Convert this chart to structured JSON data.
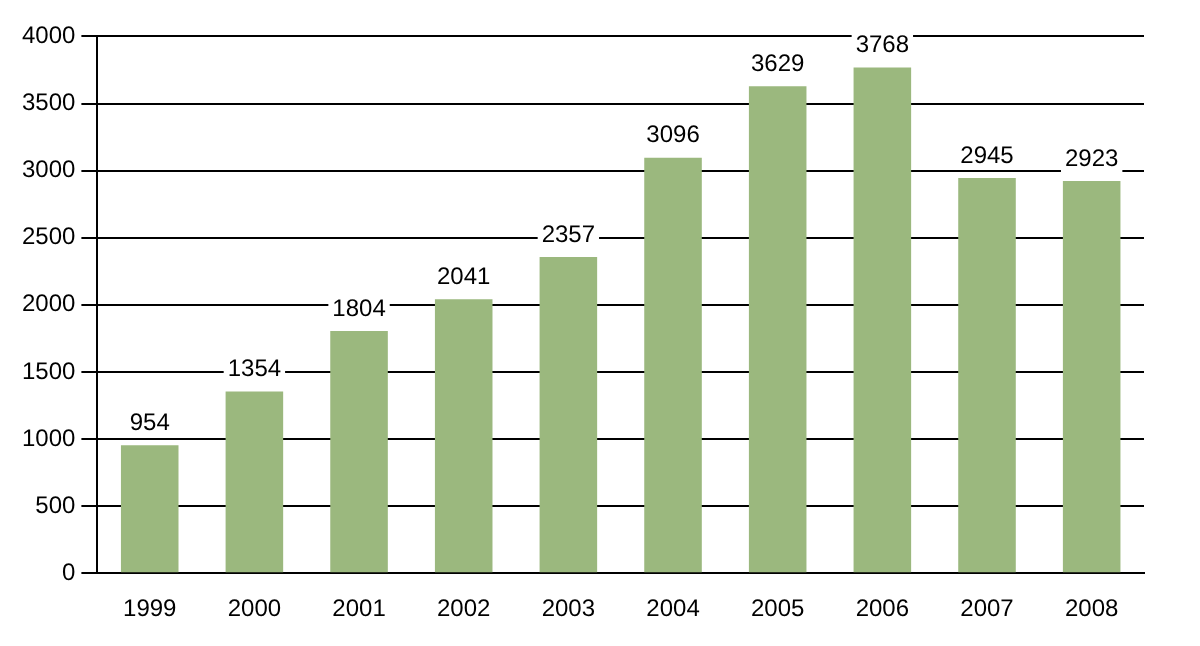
{
  "chart_data": {
    "type": "bar",
    "categories": [
      "1999",
      "2000",
      "2001",
      "2002",
      "2003",
      "2004",
      "2005",
      "2006",
      "2007",
      "2008"
    ],
    "values": [
      954,
      1354,
      1804,
      2041,
      2357,
      3096,
      3629,
      3768,
      2945,
      2923
    ],
    "color": "#9bb87e",
    "ylim": [
      0,
      4000
    ],
    "yticks": [
      0,
      500,
      1000,
      1500,
      2000,
      2500,
      3000,
      3500,
      4000
    ],
    "grid": "y",
    "data_labels": true
  }
}
